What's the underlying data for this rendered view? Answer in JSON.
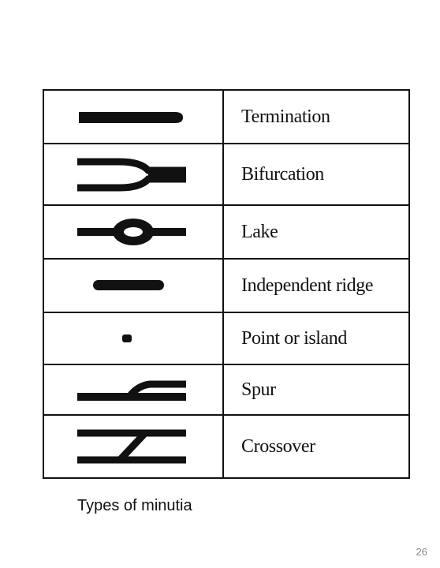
{
  "table": {
    "rows": [
      {
        "icon": "termination-icon",
        "label": "Termination"
      },
      {
        "icon": "bifurcation-icon",
        "label": "Bifurcation"
      },
      {
        "icon": "lake-icon",
        "label": "Lake"
      },
      {
        "icon": "independent-ridge-icon",
        "label": "Independent ridge"
      },
      {
        "icon": "point-or-island-icon",
        "label": "Point or island"
      },
      {
        "icon": "spur-icon",
        "label": "Spur"
      },
      {
        "icon": "crossover-icon",
        "label": "Crossover"
      }
    ]
  },
  "caption": "Types of minutia",
  "page_number": "26",
  "colors": {
    "ink": "#111111",
    "page_number": "#8a8a8a",
    "background": "#ffffff"
  }
}
